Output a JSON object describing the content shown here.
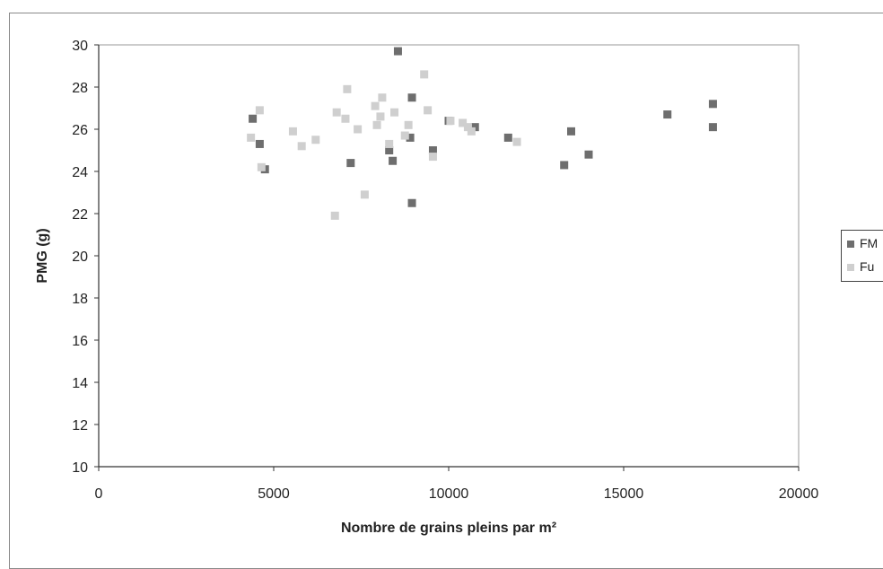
{
  "chart_data": {
    "type": "scatter",
    "title": "",
    "xlabel": "Nombre de grains pleins par m²",
    "ylabel": "PMG (g)",
    "xlim": [
      0,
      20000
    ],
    "ylim": [
      10,
      30
    ],
    "xticks": [
      0,
      5000,
      10000,
      15000,
      20000
    ],
    "yticks": [
      10,
      12,
      14,
      16,
      18,
      20,
      22,
      24,
      26,
      28,
      30
    ],
    "grid": false,
    "legend_position": "right",
    "series": [
      {
        "name": "FM",
        "color": "#6e6e6e",
        "points": [
          [
            4400,
            26.5
          ],
          [
            4600,
            25.3
          ],
          [
            4750,
            24.1
          ],
          [
            7200,
            24.4
          ],
          [
            8300,
            25.0
          ],
          [
            8400,
            24.5
          ],
          [
            8550,
            29.7
          ],
          [
            8900,
            25.6
          ],
          [
            8950,
            27.5
          ],
          [
            8950,
            22.5
          ],
          [
            9550,
            25.0
          ],
          [
            10000,
            26.4
          ],
          [
            10750,
            26.1
          ],
          [
            11700,
            25.6
          ],
          [
            13300,
            24.3
          ],
          [
            13500,
            25.9
          ],
          [
            14000,
            24.8
          ],
          [
            16250,
            26.7
          ],
          [
            17550,
            27.2
          ],
          [
            17550,
            26.1
          ]
        ]
      },
      {
        "name": "Fu",
        "color": "#cfcfcf",
        "points": [
          [
            4350,
            25.6
          ],
          [
            4600,
            26.9
          ],
          [
            4650,
            24.2
          ],
          [
            5550,
            25.9
          ],
          [
            5800,
            25.2
          ],
          [
            6200,
            25.5
          ],
          [
            6750,
            21.9
          ],
          [
            6800,
            26.8
          ],
          [
            7050,
            26.5
          ],
          [
            7100,
            27.9
          ],
          [
            7400,
            26.0
          ],
          [
            7600,
            22.9
          ],
          [
            7900,
            27.1
          ],
          [
            7950,
            26.2
          ],
          [
            8050,
            26.6
          ],
          [
            8100,
            27.5
          ],
          [
            8300,
            25.3
          ],
          [
            8450,
            26.8
          ],
          [
            8750,
            25.7
          ],
          [
            8850,
            26.2
          ],
          [
            9300,
            28.6
          ],
          [
            9400,
            26.9
          ],
          [
            9550,
            24.7
          ],
          [
            10050,
            26.4
          ],
          [
            10400,
            26.3
          ],
          [
            10550,
            26.1
          ],
          [
            10650,
            25.9
          ],
          [
            11950,
            25.4
          ]
        ]
      }
    ]
  }
}
